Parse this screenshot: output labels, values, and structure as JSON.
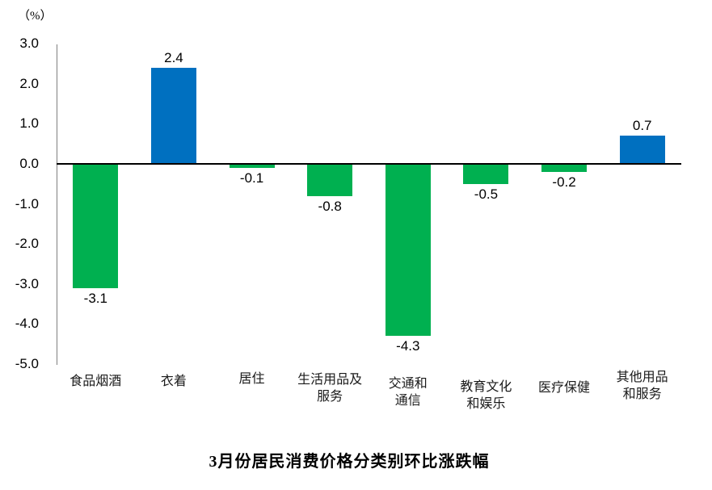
{
  "unit_label": "（%）",
  "title": "3月份居民消费价格分类别环比涨跌幅",
  "chart_data": {
    "type": "bar",
    "title": "3月份居民消费价格分类别环比涨跌幅",
    "ylabel": "（%）",
    "xlabel": "",
    "categories": [
      "食品烟酒",
      "衣着",
      "居住",
      "生活用品及服务",
      "交通和通信",
      "教育文化和娱乐",
      "医疗保健",
      "其他用品和服务"
    ],
    "category_lines": [
      [
        "食品烟酒"
      ],
      [
        "衣着"
      ],
      [
        "居住"
      ],
      [
        "生活用品及",
        "服务"
      ],
      [
        "交通和",
        "通信"
      ],
      [
        "教育文化",
        "和娱乐"
      ],
      [
        "医疗保健"
      ],
      [
        "其他用品",
        "和服务"
      ]
    ],
    "values": [
      -3.1,
      2.4,
      -0.1,
      -0.8,
      -4.3,
      -0.5,
      -0.2,
      0.7
    ],
    "data_labels": [
      "-3.1",
      "2.4",
      "-0.1",
      "-0.8",
      "-4.3",
      "-0.5",
      "-0.2",
      "0.7"
    ],
    "bar_colors": [
      "#00B050",
      "#0070C0",
      "#00B050",
      "#00B050",
      "#00B050",
      "#00B050",
      "#00B050",
      "#0070C0"
    ],
    "positive_color": "#0070C0",
    "negative_color": "#00B050",
    "ylim": [
      -5.0,
      3.0
    ],
    "ytick_labels": [
      "3.0",
      "2.0",
      "1.0",
      "0.0",
      "-1.0",
      "-2.0",
      "-3.0",
      "-4.0",
      "-5.0"
    ],
    "grid": false,
    "legend": false,
    "axis_line_color": "#7f7f7f",
    "zero_line_color": "#000000"
  }
}
